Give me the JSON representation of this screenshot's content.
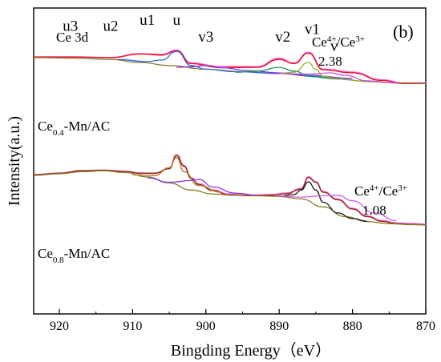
{
  "chart_data": {
    "type": "line",
    "panel_label": "(b)",
    "title": "Ce 3d",
    "xlabel": "Bingding Energy（eV）",
    "ylabel": "Intensity(a.u.)",
    "xlim": [
      923.5,
      870
    ],
    "x_reversed": true,
    "x_ticks": [
      920,
      910,
      900,
      890,
      880,
      870
    ],
    "y_ticks_shown": false,
    "grid": false,
    "peak_labels": [
      {
        "text": "u3",
        "x": 918.5,
        "y": 0.925
      },
      {
        "text": "u2",
        "x": 913.0,
        "y": 0.925
      },
      {
        "text": "u1",
        "x": 908.0,
        "y": 0.945
      },
      {
        "text": "u",
        "x": 904.0,
        "y": 0.945
      },
      {
        "text": "v3",
        "x": 900.0,
        "y": 0.89
      },
      {
        "text": "v2",
        "x": 889.5,
        "y": 0.89
      },
      {
        "text": "v1",
        "x": 885.5,
        "y": 0.915
      },
      {
        "text": "v",
        "x": 882.5,
        "y": 0.86
      }
    ],
    "samples": [
      {
        "label_main": "Ce",
        "label_sub": "0.4",
        "label_rest": "-Mn/AC",
        "ratio_label_main": "Ce",
        "ratio_label_sup1": "4+",
        "ratio_label_mid": "/Ce",
        "ratio_label_sup2": "3+",
        "ratio_value": "2.38",
        "series": [
          {
            "role": "experimental",
            "color": "#ff5ad2",
            "x": [
              923.5,
              918,
              913,
              909,
              906,
              904,
              902,
              898,
              893,
              890,
              888,
              886,
              884,
              880,
              876,
              873,
              870
            ],
            "y": [
              0.84,
              0.84,
              0.838,
              0.85,
              0.848,
              0.862,
              0.82,
              0.808,
              0.808,
              0.835,
              0.82,
              0.855,
              0.8,
              0.79,
              0.765,
              0.755,
              0.755
            ]
          },
          {
            "role": "fitted-envelope",
            "color": "#e8141e",
            "x": [
              923.5,
              918,
              913,
              909,
              906,
              904,
              902,
              898,
              893,
              890,
              888,
              886,
              884,
              880,
              876,
              873,
              870
            ],
            "y": [
              0.84,
              0.84,
              0.838,
              0.85,
              0.846,
              0.86,
              0.818,
              0.805,
              0.806,
              0.832,
              0.818,
              0.852,
              0.798,
              0.788,
              0.763,
              0.753,
              0.753
            ]
          },
          {
            "role": "background",
            "color": "#8a7a28",
            "x": [
              923.5,
              918,
              913,
              909,
              905,
              900,
              895,
              890,
              886,
              882,
              878,
              874,
              870
            ],
            "y": [
              0.838,
              0.836,
              0.832,
              0.822,
              0.812,
              0.8,
              0.792,
              0.786,
              0.778,
              0.768,
              0.76,
              0.755,
              0.754
            ]
          },
          {
            "role": "component-u",
            "color": "#2d6ad2",
            "x": [
              912,
              908,
              906,
              904,
              902,
              900,
              896,
              890,
              884,
              880
            ],
            "y": [
              0.832,
              0.825,
              0.83,
              0.858,
              0.812,
              0.8,
              0.792,
              0.786,
              0.774,
              0.765
            ]
          },
          {
            "role": "component-v3",
            "color": "#8c32e6",
            "x": [
              904,
              902,
              900,
              898,
              894,
              890,
              886,
              880
            ],
            "y": [
              0.806,
              0.808,
              0.812,
              0.805,
              0.795,
              0.788,
              0.78,
              0.77
            ]
          },
          {
            "role": "component-v2",
            "color": "#1a9a5a",
            "x": [
              896,
              893,
              890,
              888,
              886,
              884,
              882,
              878
            ],
            "y": [
              0.79,
              0.794,
              0.806,
              0.794,
              0.78,
              0.772,
              0.768,
              0.76
            ]
          },
          {
            "role": "component-v1",
            "color": "#9ab428",
            "x": [
              890,
              888,
              886,
              885,
              884,
              882,
              878
            ],
            "y": [
              0.786,
              0.79,
              0.822,
              0.8,
              0.777,
              0.768,
              0.76
            ]
          },
          {
            "role": "component-v",
            "color": "#c050e0",
            "x": [
              890,
              886,
              883,
              881,
              878,
              874
            ],
            "y": [
              0.786,
              0.784,
              0.788,
              0.78,
              0.762,
              0.755
            ]
          }
        ]
      },
      {
        "label_main": "Ce",
        "label_sub": "0.8",
        "label_rest": "-Mn/AC",
        "ratio_label_main": "Ce",
        "ratio_label_sup1": "4+",
        "ratio_label_mid": "/Ce",
        "ratio_label_sup2": "3+",
        "ratio_value": "1.08",
        "series": [
          {
            "role": "experimental",
            "color": "#ff5ad2",
            "x": [
              923.5,
              920,
              917,
              914,
              911,
              909,
              907,
              905,
              904,
              903,
              902,
              901,
              899,
              897,
              894,
              891,
              889,
              887,
              886,
              885,
              884,
              882,
              880,
              878,
              876,
              874,
              872,
              870
            ],
            "y": [
              0.455,
              0.46,
              0.468,
              0.47,
              0.466,
              0.46,
              0.46,
              0.475,
              0.52,
              0.485,
              0.445,
              0.425,
              0.405,
              0.392,
              0.388,
              0.39,
              0.395,
              0.41,
              0.448,
              0.432,
              0.4,
              0.375,
              0.345,
              0.32,
              0.305,
              0.297,
              0.295,
              0.293
            ]
          },
          {
            "role": "fitted-envelope",
            "color": "#8b2a1a",
            "x": [
              923.5,
              920,
              917,
              914,
              911,
              909,
              907,
              905,
              904,
              903,
              902,
              901,
              899,
              897,
              894,
              891,
              889,
              887,
              886,
              885,
              884,
              882,
              880,
              878,
              876,
              874,
              872,
              870
            ],
            "y": [
              0.455,
              0.46,
              0.468,
              0.47,
              0.466,
              0.46,
              0.46,
              0.475,
              0.518,
              0.483,
              0.443,
              0.423,
              0.403,
              0.39,
              0.386,
              0.388,
              0.393,
              0.408,
              0.446,
              0.43,
              0.398,
              0.373,
              0.343,
              0.318,
              0.303,
              0.295,
              0.293,
              0.291
            ]
          },
          {
            "role": "background",
            "color": "#8a7a28",
            "x": [
              923.5,
              920,
              917,
              914,
              911,
              908,
              905,
              902,
              899,
              896,
              893,
              890,
              887,
              884,
              881,
              878,
              875,
              872,
              870
            ],
            "y": [
              0.453,
              0.458,
              0.465,
              0.468,
              0.462,
              0.448,
              0.428,
              0.405,
              0.392,
              0.388,
              0.386,
              0.384,
              0.376,
              0.35,
              0.318,
              0.302,
              0.295,
              0.292,
              0.291
            ]
          },
          {
            "role": "component-u",
            "color": "#b07a10",
            "x": [
              910,
              907,
              905,
              904,
              903,
              901,
              898
            ],
            "y": [
              0.455,
              0.452,
              0.478,
              0.512,
              0.465,
              0.42,
              0.398
            ]
          },
          {
            "role": "component-v3",
            "color": "#8c32e6",
            "x": [
              908,
              905,
              902,
              901,
              899,
              896,
              893
            ],
            "y": [
              0.445,
              0.43,
              0.436,
              0.44,
              0.415,
              0.395,
              0.388
            ]
          },
          {
            "role": "component-v1",
            "color": "#1a1a1a",
            "x": [
              890,
              888,
              887,
              886,
              885,
              884,
              882,
              880,
              878
            ],
            "y": [
              0.385,
              0.39,
              0.405,
              0.432,
              0.405,
              0.365,
              0.33,
              0.312,
              0.303
            ]
          },
          {
            "role": "component-v",
            "color": "#d260e8",
            "x": [
              890,
              887,
              884,
              882,
              880,
              877,
              874
            ],
            "y": [
              0.385,
              0.382,
              0.386,
              0.388,
              0.37,
              0.33,
              0.305
            ]
          }
        ]
      }
    ]
  }
}
